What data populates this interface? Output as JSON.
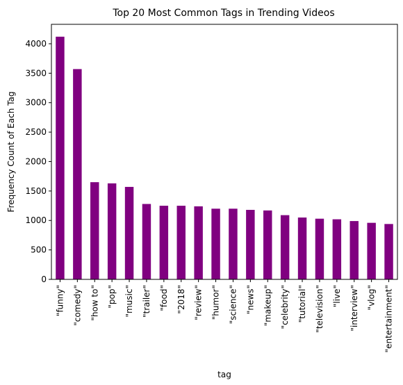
{
  "chart_data": {
    "type": "bar",
    "title": "Top 20 Most Common Tags in Trending Videos",
    "xlabel": "tag",
    "ylabel": "Frequency Count of Each Tag",
    "categories": [
      "\"funny\"",
      "\"comedy\"",
      "\"how to\"",
      "\"pop\"",
      "\"music\"",
      "\"trailer\"",
      "\"food\"",
      "\"2018\"",
      "\"review\"",
      "\"humor\"",
      "\"science\"",
      "\"news\"",
      "\"makeup\"",
      "\"celebrity\"",
      "\"tutorial\"",
      "\"television\"",
      "\"live\"",
      "\"interview\"",
      "\"vlog\"",
      "\"entertainment\""
    ],
    "values": [
      4120,
      3570,
      1650,
      1630,
      1570,
      1280,
      1250,
      1250,
      1240,
      1200,
      1200,
      1180,
      1170,
      1090,
      1050,
      1030,
      1020,
      990,
      960,
      940
    ],
    "ylim": [
      0,
      4330
    ],
    "yticks": [
      0,
      500,
      1000,
      1500,
      2000,
      2500,
      3000,
      3500,
      4000
    ],
    "bar_color": "#800080",
    "grid": false,
    "legend": "none"
  }
}
